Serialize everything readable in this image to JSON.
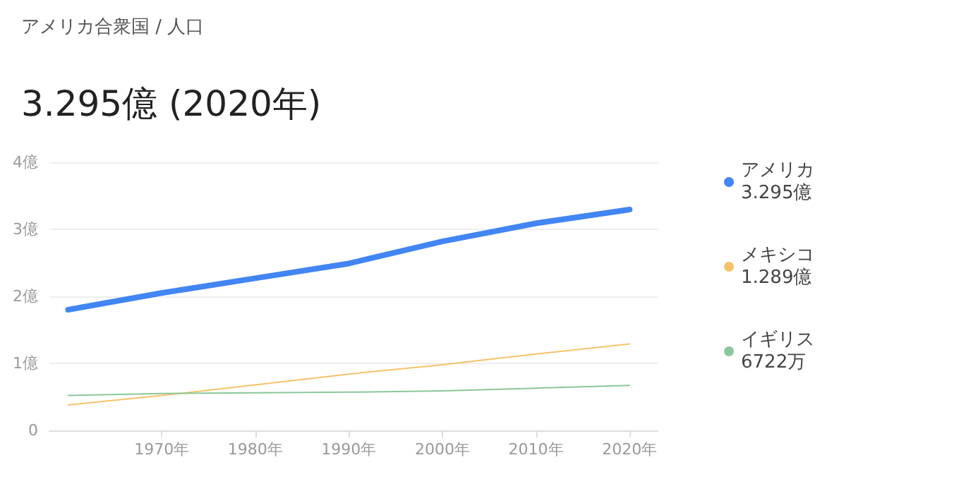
{
  "chart_data": {
    "type": "line",
    "subtitle": "アメリカ合衆国 / 人口",
    "title": "3.295億 (2020年)",
    "x": [
      1960,
      1970,
      1980,
      1990,
      2000,
      2010,
      2020
    ],
    "series": [
      {
        "name": "アメリカ",
        "color": "#4285f4",
        "values": [
          1.8,
          2.05,
          2.27,
          2.49,
          2.82,
          3.09,
          3.295
        ]
      },
      {
        "name": "メキシコ",
        "color": "#f6c26b",
        "values": [
          0.38,
          0.52,
          0.68,
          0.84,
          0.98,
          1.14,
          1.289
        ]
      },
      {
        "name": "イギリス",
        "color": "#8bc79a",
        "values": [
          0.52,
          0.55,
          0.56,
          0.57,
          0.59,
          0.63,
          0.6722
        ]
      }
    ],
    "annotations": [
      "3.295億",
      "1.289億",
      "6722万"
    ],
    "xlim": [
      1958,
      2023
    ],
    "xticks": [
      {
        "value": 1970,
        "label": "1970年"
      },
      {
        "value": 1980,
        "label": "1980年"
      },
      {
        "value": 1990,
        "label": "1990年"
      },
      {
        "value": 2000,
        "label": "2000年"
      },
      {
        "value": 2010,
        "label": "2010年"
      },
      {
        "value": 2020,
        "label": "2020年"
      }
    ],
    "ylim": [
      0,
      4
    ],
    "yticks": [
      {
        "value": 0,
        "label": "0"
      },
      {
        "value": 1,
        "label": "1億"
      },
      {
        "value": 2,
        "label": "2億"
      },
      {
        "value": 3,
        "label": "3億"
      },
      {
        "value": 4,
        "label": "4億"
      }
    ],
    "grid": "y",
    "legend": "right",
    "marker": "none",
    "line_style": "solid"
  }
}
